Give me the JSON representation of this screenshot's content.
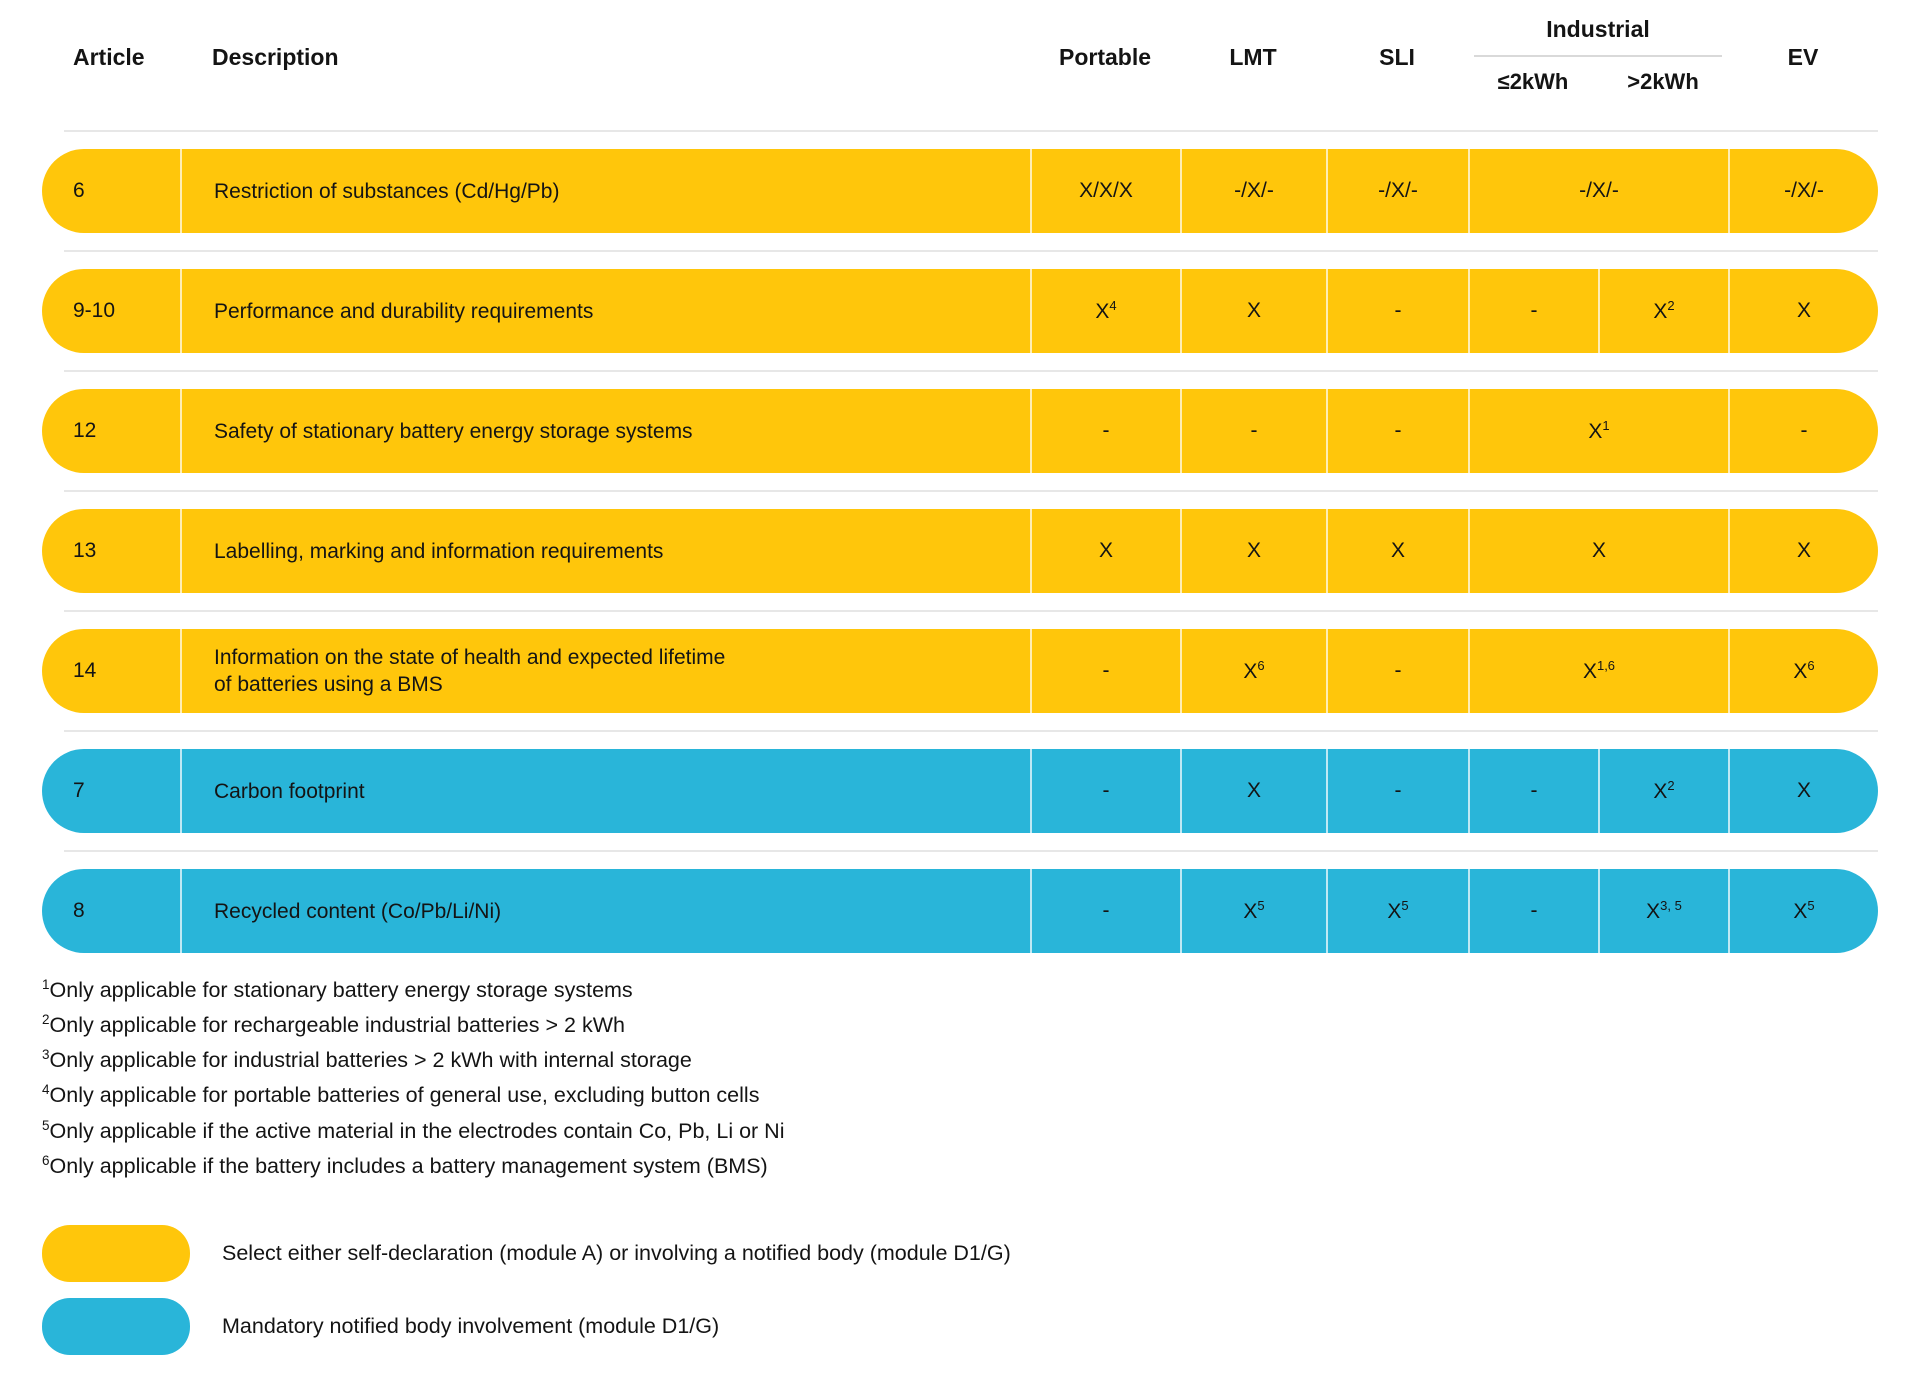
{
  "colors": {
    "yellow": "#FFC60B",
    "blue": "#29B5D9",
    "separator": "#E7E7E7",
    "industrial_underline": "#D9D9D9",
    "text": "#141414"
  },
  "header": {
    "article": "Article",
    "description": "Description",
    "portable": "Portable",
    "lmt": "LMT",
    "sli": "SLI",
    "industrial": "Industrial",
    "industrial_sub_low": "≤2kWh",
    "industrial_sub_high": ">2kWh",
    "ev": "EV"
  },
  "table": {
    "rows": [
      {
        "article": "6",
        "desc": "Restriction of substances (Cd/Hg/Pb)",
        "portable": {
          "v": "X/X/X"
        },
        "lmt": {
          "v": "-/X/-"
        },
        "sli": {
          "v": "-/X/-"
        },
        "industrial": {
          "v": "-/X/-"
        },
        "ev": {
          "v": "-/X/-"
        }
      },
      {
        "article": "9-10",
        "desc": "Performance and durability requirements",
        "portable": {
          "v": "X",
          "s": "4"
        },
        "lmt": {
          "v": "X"
        },
        "sli": {
          "v": "-"
        },
        "ind1": {
          "v": "-"
        },
        "ind2": {
          "v": "X",
          "s": "2"
        },
        "ev": {
          "v": "X"
        }
      },
      {
        "article": "12",
        "desc": "Safety of stationary battery energy storage systems",
        "portable": {
          "v": "-"
        },
        "lmt": {
          "v": "-"
        },
        "sli": {
          "v": "-"
        },
        "industrial": {
          "v": "X",
          "s": "1"
        },
        "ev": {
          "v": "-"
        }
      },
      {
        "article": "13",
        "desc": "Labelling, marking and information requirements",
        "portable": {
          "v": "X"
        },
        "lmt": {
          "v": "X"
        },
        "sli": {
          "v": "X"
        },
        "industrial": {
          "v": "X"
        },
        "ev": {
          "v": "X"
        }
      },
      {
        "article": "14",
        "desc": "Information on the state of health and expected lifetime",
        "desc2": "of batteries using a BMS",
        "portable": {
          "v": "-"
        },
        "lmt": {
          "v": "X",
          "s": "6"
        },
        "sli": {
          "v": "-"
        },
        "industrial": {
          "v": "X",
          "s": "1,6"
        },
        "ev": {
          "v": "X",
          "s": "6"
        }
      },
      {
        "article": "7",
        "desc": "Carbon footprint",
        "portable": {
          "v": "-"
        },
        "lmt": {
          "v": "X"
        },
        "sli": {
          "v": "-"
        },
        "ind1": {
          "v": "-"
        },
        "ind2": {
          "v": "X",
          "s": "2"
        },
        "ev": {
          "v": "X"
        }
      },
      {
        "article": "8",
        "desc": "Recycled content (Co/Pb/Li/Ni)",
        "portable": {
          "v": "-"
        },
        "lmt": {
          "v": "X",
          "s": "5"
        },
        "sli": {
          "v": "X",
          "s": "5"
        },
        "ind1": {
          "v": "-"
        },
        "ind2": {
          "v": "X",
          "s": "3, 5"
        },
        "ev": {
          "v": "X",
          "s": "5"
        }
      }
    ]
  },
  "footnotes": [
    {
      "sup": "1",
      "text": "Only applicable for stationary battery energy storage systems"
    },
    {
      "sup": "2",
      "text": "Only applicable for rechargeable industrial batteries > 2 kWh"
    },
    {
      "sup": "3",
      "text": "Only applicable for industrial batteries > 2 kWh with internal storage"
    },
    {
      "sup": "4",
      "text": "Only applicable for portable batteries of general use, excluding button cells"
    },
    {
      "sup": "5",
      "text": "Only applicable if the active material in the electrodes contain Co, Pb, Li or Ni"
    },
    {
      "sup": "6",
      "text": "Only applicable if the battery includes a battery management system (BMS)"
    }
  ],
  "legend": [
    {
      "color": "#FFC60B",
      "label": "Select either self-declaration (module A) or involving a notified body (module D1/G)"
    },
    {
      "color": "#29B5D9",
      "label": "Mandatory notified body involvement (module D1/G)"
    }
  ],
  "chart_data": {
    "type": "table",
    "columns": [
      "Article",
      "Description",
      "Portable",
      "LMT",
      "SLI",
      "Industrial ≤2kWh",
      "Industrial >2kWh",
      "EV"
    ],
    "rows": [
      [
        "6",
        "Restriction of substances (Cd/Hg/Pb)",
        "X/X/X",
        "-/X/-",
        "-/X/-",
        "-/X/-",
        "-/X/-",
        "-/X/-"
      ],
      [
        "9-10",
        "Performance and durability requirements",
        "X^4",
        "X",
        "-",
        "-",
        "X^2",
        "X"
      ],
      [
        "12",
        "Safety of stationary battery energy storage systems",
        "-",
        "-",
        "-",
        "X^1",
        "X^1",
        "-"
      ],
      [
        "13",
        "Labelling, marking and information requirements",
        "X",
        "X",
        "X",
        "X",
        "X",
        "X"
      ],
      [
        "14",
        "Information on the state of health and expected lifetime of batteries using a BMS",
        "-",
        "X^6",
        "-",
        "X^1,6",
        "X^1,6",
        "X^6"
      ],
      [
        "7",
        "Carbon footprint",
        "-",
        "X",
        "-",
        "-",
        "X^2",
        "X"
      ],
      [
        "8",
        "Recycled content (Co/Pb/Li/Ni)",
        "-",
        "X^5",
        "X^5",
        "-",
        "X^3,5",
        "X^5"
      ]
    ],
    "row_colors": [
      "yellow",
      "yellow",
      "yellow",
      "yellow",
      "yellow",
      "blue",
      "blue"
    ],
    "merged_industrial_rows": [
      "6",
      "12",
      "13",
      "14"
    ],
    "legend_position": "bottom-left",
    "grid": false
  }
}
